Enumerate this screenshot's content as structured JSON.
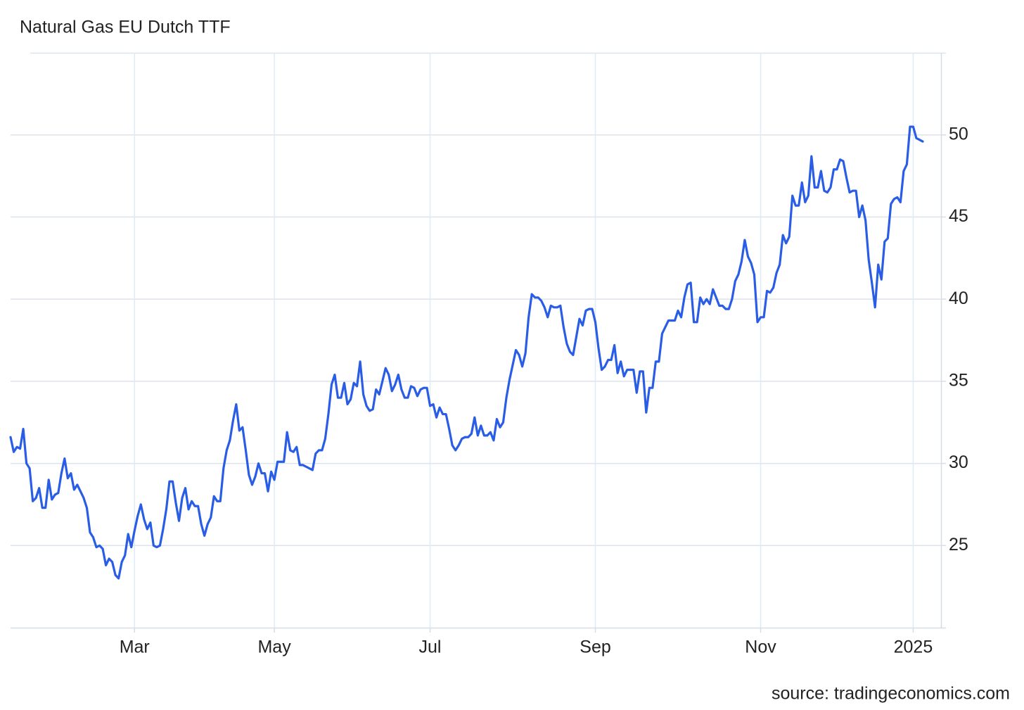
{
  "chart_data": {
    "type": "line",
    "title": "Natural Gas EU Dutch TTF",
    "source": "source: tradingeconomics.com",
    "color": "#2a5de6",
    "grid": true,
    "ylim": [
      20,
      55
    ],
    "yticks": [
      25,
      30,
      35,
      40,
      45,
      50
    ],
    "categories": [
      null,
      null,
      null,
      null,
      null,
      null,
      null,
      null,
      null,
      null,
      null,
      null,
      null,
      null,
      null,
      null,
      null,
      null,
      null,
      null,
      null,
      null,
      null,
      null,
      null,
      null,
      null,
      null,
      null,
      null,
      null,
      null,
      null,
      null,
      null,
      null,
      null,
      null,
      null,
      "Mar",
      null,
      null,
      null,
      null,
      null,
      null,
      null,
      null,
      null,
      null,
      null,
      null,
      null,
      null,
      null,
      null,
      null,
      null,
      null,
      null,
      null,
      null,
      null,
      null,
      null,
      null,
      null,
      null,
      null,
      null,
      null,
      null,
      null,
      null,
      null,
      null,
      null,
      null,
      null,
      null,
      null,
      null,
      null,
      "May",
      null,
      null,
      null,
      null,
      null,
      null,
      null,
      null,
      null,
      null,
      null,
      null,
      null,
      null,
      null,
      null,
      null,
      null,
      null,
      null,
      null,
      null,
      null,
      null,
      null,
      null,
      null,
      null,
      null,
      null,
      null,
      null,
      null,
      null,
      null,
      null,
      null,
      null,
      null,
      null,
      null,
      null,
      null,
      null,
      null,
      null,
      null,
      null,
      "Jul",
      null,
      null,
      null,
      null,
      null,
      null,
      null,
      null,
      null,
      null,
      null,
      null,
      null,
      null,
      null,
      null,
      null,
      null,
      null,
      null,
      null,
      null,
      null,
      null,
      null,
      null,
      null,
      null,
      null,
      null,
      null,
      null,
      null,
      null,
      null,
      null,
      null,
      null,
      null,
      null,
      null,
      null,
      null,
      null,
      null,
      null,
      null,
      null,
      null,
      null,
      null,
      "Sep",
      null,
      null,
      null,
      null,
      null,
      null,
      null,
      null,
      null,
      null,
      null,
      null,
      null,
      null,
      null,
      null,
      null,
      null,
      null,
      null,
      null,
      null,
      null,
      null,
      null,
      null,
      null,
      null,
      null,
      null,
      null,
      null,
      null,
      null,
      null,
      null,
      null,
      null,
      null,
      null,
      null,
      null,
      null,
      null,
      null,
      null,
      null,
      null,
      null,
      null,
      null,
      "Nov",
      null,
      null,
      null,
      null,
      null,
      null,
      null,
      null,
      null,
      null,
      null,
      null,
      null,
      null,
      null,
      null,
      null,
      null,
      null,
      null,
      null,
      null,
      null,
      null,
      null,
      null,
      null,
      null,
      null,
      null,
      null,
      null,
      null,
      null,
      null,
      null,
      null,
      null,
      null,
      null,
      null,
      null,
      null,
      null,
      null,
      null,
      null,
      "2025",
      null,
      null,
      null
    ],
    "values": [
      31.6,
      30.7,
      31.0,
      30.9,
      32.1,
      30.0,
      29.7,
      27.7,
      27.9,
      28.5,
      27.3,
      27.3,
      29.0,
      27.8,
      28.1,
      28.2,
      29.4,
      30.3,
      29.1,
      29.4,
      28.4,
      28.7,
      28.3,
      27.9,
      27.3,
      25.8,
      25.5,
      24.9,
      25.0,
      24.8,
      23.8,
      24.2,
      24.0,
      23.2,
      23.0,
      24.0,
      24.4,
      25.7,
      24.9,
      25.9,
      26.8,
      27.5,
      26.6,
      26.0,
      26.4,
      25.0,
      24.9,
      25.0,
      26.0,
      27.2,
      28.9,
      28.9,
      27.6,
      26.5,
      27.9,
      28.5,
      27.2,
      27.7,
      27.4,
      27.4,
      26.3,
      25.6,
      26.3,
      26.7,
      28.0,
      27.7,
      27.7,
      29.7,
      30.8,
      31.4,
      32.6,
      33.6,
      32.0,
      32.2,
      30.8,
      29.3,
      28.7,
      29.2,
      30.0,
      29.4,
      29.4,
      28.3,
      29.5,
      29.0,
      30.1,
      30.1,
      30.1,
      31.9,
      30.8,
      30.7,
      31.0,
      29.9,
      29.9,
      29.8,
      29.7,
      29.6,
      30.6,
      30.8,
      30.8,
      31.5,
      33.0,
      34.8,
      35.4,
      34.0,
      34.0,
      34.9,
      33.6,
      33.9,
      34.9,
      34.7,
      36.2,
      34.2,
      33.5,
      33.2,
      33.3,
      34.5,
      34.2,
      35.0,
      35.8,
      35.4,
      34.4,
      34.8,
      35.4,
      34.5,
      34.0,
      34.0,
      34.7,
      34.6,
      34.1,
      34.5,
      34.6,
      34.6,
      33.5,
      33.6,
      32.8,
      33.4,
      33.0,
      33.0,
      32.1,
      31.1,
      30.8,
      31.1,
      31.5,
      31.6,
      31.6,
      31.8,
      32.8,
      31.7,
      32.3,
      31.7,
      31.7,
      31.9,
      31.4,
      32.7,
      32.2,
      32.5,
      34.0,
      35.1,
      36.0,
      36.9,
      36.6,
      35.9,
      36.7,
      38.9,
      40.3,
      40.1,
      40.1,
      39.9,
      39.5,
      38.9,
      39.6,
      39.5,
      39.5,
      39.6,
      38.3,
      37.3,
      36.8,
      36.6,
      37.7,
      38.8,
      38.4,
      39.3,
      39.4,
      39.4,
      38.6,
      37.0,
      35.7,
      35.9,
      36.3,
      36.3,
      37.2,
      35.5,
      36.2,
      35.3,
      35.7,
      35.7,
      35.7,
      34.3,
      35.6,
      35.6,
      33.1,
      34.6,
      34.6,
      36.2,
      36.2,
      37.9,
      38.3,
      38.7,
      38.7,
      38.7,
      39.3,
      38.9,
      40.1,
      40.9,
      41.0,
      38.6,
      38.6,
      40.1,
      39.7,
      40.0,
      39.7,
      40.6,
      40.1,
      39.6,
      39.6,
      39.4,
      39.4,
      40.0,
      41.1,
      41.5,
      42.3,
      43.6,
      42.6,
      42.2,
      41.5,
      38.6,
      38.9,
      38.9,
      40.5,
      40.4,
      40.7,
      41.6,
      42.1,
      43.9,
      43.4,
      43.8,
      46.3,
      45.7,
      45.7,
      47.1,
      45.9,
      46.3,
      48.7,
      46.8,
      46.8,
      47.8,
      46.6,
      46.5,
      46.8,
      47.9,
      47.9,
      48.5,
      48.4,
      47.4,
      46.5,
      46.6,
      46.6,
      45.0,
      45.7,
      44.8,
      42.4,
      41.0,
      39.5,
      42.1,
      41.2,
      43.5,
      43.7,
      45.8,
      46.1,
      46.2,
      45.9,
      47.8,
      48.2,
      50.5,
      50.5,
      49.8,
      49.7,
      49.6
    ]
  }
}
